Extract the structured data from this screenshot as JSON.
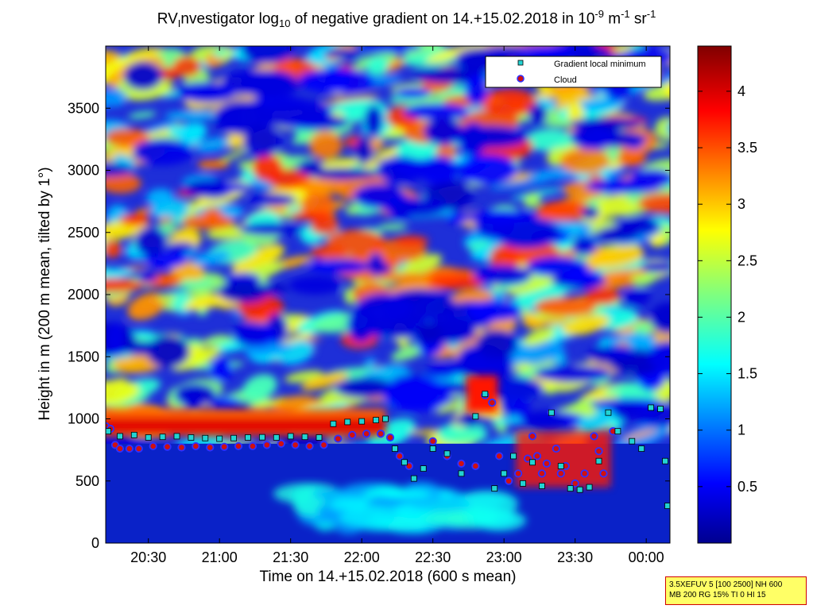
{
  "title": {
    "prefix": "RV",
    "sub_i": "I",
    "mid": "nvestigator log",
    "sub_10": "10",
    "rest": " of negative gradient on 14.+15.02.2018 in 10",
    "exp1": "-9",
    "unit1": " m",
    "exp2": "-1",
    "unit2": " sr",
    "exp3": "-1"
  },
  "xlabel": "Time on 14.+15.02.2018 (600 s mean)",
  "ylabel": "Height in m (200 m mean, tilted by 1°)",
  "info_lines": [
    "3.5XEFUV 5 [100 2500] NH 600",
    "MB 200 RG 15% TI 0 HI 15"
  ],
  "legend": {
    "placement": "top-right",
    "entries": [
      {
        "label": "Gradient local minimum",
        "marker": "square",
        "color": "#22d3d3"
      },
      {
        "label": "Cloud",
        "marker": "circle",
        "color": "#d01010"
      }
    ]
  },
  "colorbar": {
    "ticks": [
      "0.5",
      "1",
      "1.5",
      "2",
      "2.5",
      "3",
      "3.5",
      "4"
    ],
    "range": [
      0,
      4.4
    ],
    "colormap": "jet"
  },
  "chart_data": {
    "type": "heatmap",
    "x_axis": {
      "ticks": [
        "20:30",
        "21:00",
        "21:30",
        "22:00",
        "22:30",
        "23:00",
        "23:30",
        "00:00"
      ],
      "range": [
        "20:12",
        "00:10"
      ]
    },
    "y_axis": {
      "ticks": [
        "0",
        "500",
        "1000",
        "1500",
        "2000",
        "2500",
        "3000",
        "3500"
      ],
      "range": [
        0,
        4000
      ]
    },
    "z_range": [
      0,
      4.4
    ],
    "series": [
      {
        "name": "Gradient local minimum",
        "points": [
          [
            "20:13",
            900
          ],
          [
            "20:18",
            860
          ],
          [
            "20:24",
            870
          ],
          [
            "20:30",
            850
          ],
          [
            "20:36",
            855
          ],
          [
            "20:42",
            860
          ],
          [
            "20:48",
            850
          ],
          [
            "20:54",
            845
          ],
          [
            "21:00",
            840
          ],
          [
            "21:06",
            845
          ],
          [
            "21:12",
            850
          ],
          [
            "21:18",
            852
          ],
          [
            "21:24",
            850
          ],
          [
            "21:30",
            860
          ],
          [
            "21:36",
            855
          ],
          [
            "21:42",
            850
          ],
          [
            "21:48",
            960
          ],
          [
            "21:54",
            975
          ],
          [
            "22:00",
            980
          ],
          [
            "22:06",
            990
          ],
          [
            "22:10",
            1000
          ],
          [
            "22:14",
            760
          ],
          [
            "22:18",
            650
          ],
          [
            "22:22",
            520
          ],
          [
            "22:26",
            600
          ],
          [
            "22:30",
            760
          ],
          [
            "22:36",
            720
          ],
          [
            "22:42",
            560
          ],
          [
            "22:48",
            1020
          ],
          [
            "22:52",
            1200
          ],
          [
            "22:56",
            440
          ],
          [
            "23:00",
            560
          ],
          [
            "23:04",
            700
          ],
          [
            "23:08",
            480
          ],
          [
            "23:12",
            650
          ],
          [
            "23:16",
            460
          ],
          [
            "23:20",
            1050
          ],
          [
            "23:24",
            620
          ],
          [
            "23:28",
            440
          ],
          [
            "23:32",
            430
          ],
          [
            "23:36",
            450
          ],
          [
            "23:40",
            660
          ],
          [
            "23:44",
            1050
          ],
          [
            "23:48",
            900
          ],
          [
            "23:54",
            820
          ],
          [
            "23:58",
            760
          ],
          [
            "00:02",
            1090
          ],
          [
            "00:06",
            1080
          ],
          [
            "00:08",
            660
          ],
          [
            "00:09",
            300
          ]
        ]
      },
      {
        "name": "Cloud",
        "points": [
          [
            "20:12",
            940
          ],
          [
            "20:14",
            920
          ],
          [
            "20:16",
            790
          ],
          [
            "20:18",
            760
          ],
          [
            "20:22",
            760
          ],
          [
            "20:26",
            760
          ],
          [
            "20:32",
            780
          ],
          [
            "20:38",
            775
          ],
          [
            "20:44",
            770
          ],
          [
            "20:50",
            780
          ],
          [
            "20:56",
            770
          ],
          [
            "21:02",
            775
          ],
          [
            "21:08",
            780
          ],
          [
            "21:14",
            780
          ],
          [
            "21:20",
            790
          ],
          [
            "21:26",
            800
          ],
          [
            "21:32",
            790
          ],
          [
            "21:38",
            780
          ],
          [
            "21:44",
            790
          ],
          [
            "21:50",
            840
          ],
          [
            "21:56",
            870
          ],
          [
            "22:02",
            880
          ],
          [
            "22:08",
            880
          ],
          [
            "22:12",
            850
          ],
          [
            "22:16",
            700
          ],
          [
            "22:20",
            620
          ],
          [
            "22:30",
            820
          ],
          [
            "22:36",
            700
          ],
          [
            "22:42",
            640
          ],
          [
            "22:48",
            620
          ],
          [
            "22:52",
            1190
          ],
          [
            "22:55",
            1130
          ],
          [
            "22:58",
            700
          ],
          [
            "23:02",
            500
          ],
          [
            "23:06",
            560
          ],
          [
            "23:10",
            680
          ],
          [
            "23:12",
            860
          ],
          [
            "23:14",
            700
          ],
          [
            "23:16",
            560
          ],
          [
            "23:18",
            640
          ],
          [
            "23:20",
            1050
          ],
          [
            "23:22",
            760
          ],
          [
            "23:24",
            560
          ],
          [
            "23:26",
            620
          ],
          [
            "23:30",
            480
          ],
          [
            "23:34",
            560
          ],
          [
            "23:38",
            860
          ],
          [
            "23:40",
            740
          ],
          [
            "23:42",
            560
          ],
          [
            "23:46",
            900
          ]
        ]
      }
    ]
  }
}
